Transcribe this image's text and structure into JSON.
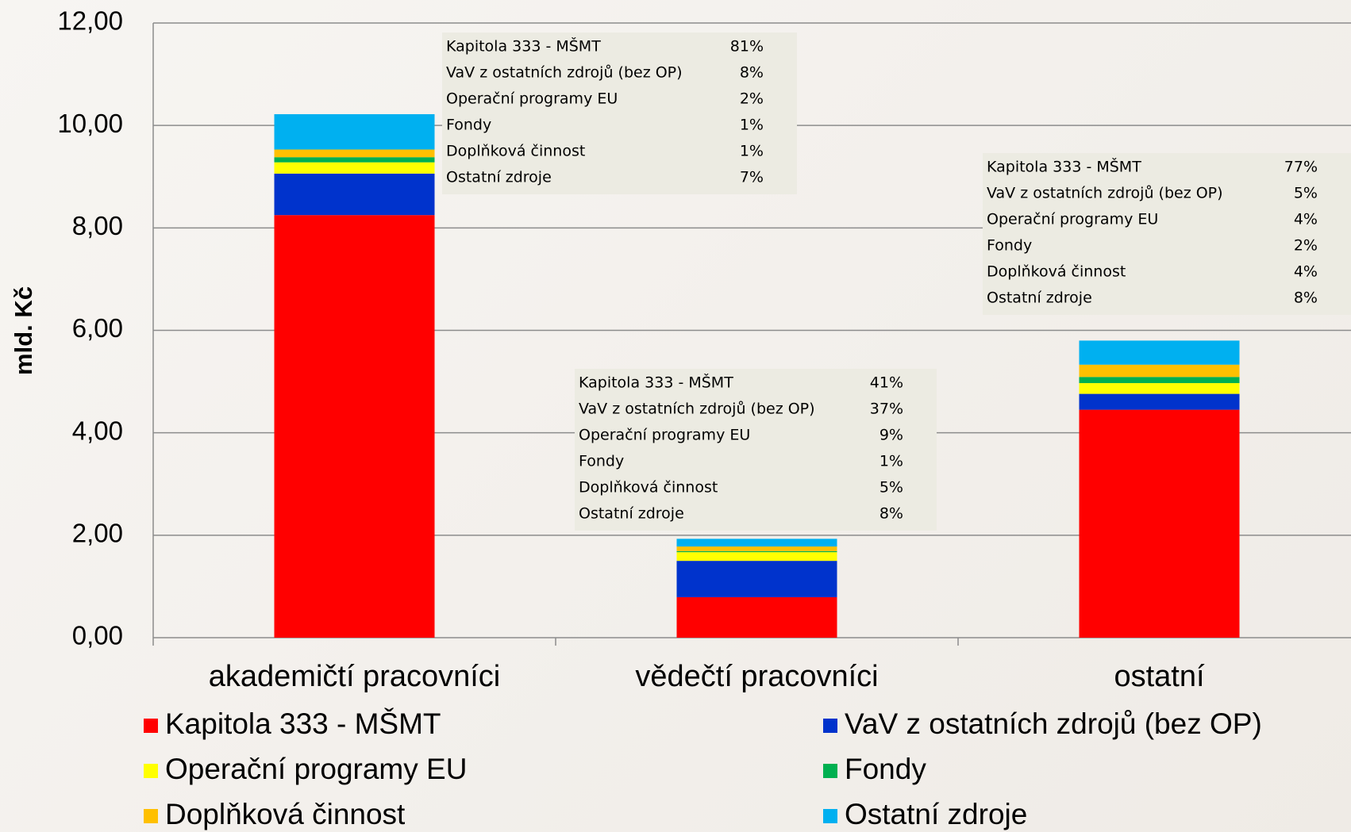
{
  "chart_data": {
    "type": "stacked_bar",
    "y_label": "mld. Kč",
    "categories": [
      "akademičtí pracovníci",
      "vědečtí pracovníci",
      "ostatní"
    ],
    "series": [
      {
        "name": "Kapitola 333 - MŠMT",
        "color": "#ff0000",
        "values": [
          8.25,
          0.79,
          4.45
        ]
      },
      {
        "name": "VaV z ostatních zdrojů (bez OP)",
        "color": "#0033cc",
        "values": [
          0.81,
          0.71,
          0.31
        ]
      },
      {
        "name": "Operační programy EU",
        "color": "#ffff00",
        "values": [
          0.22,
          0.17,
          0.21
        ]
      },
      {
        "name": "Fondy",
        "color": "#00b050",
        "values": [
          0.1,
          0.02,
          0.12
        ]
      },
      {
        "name": "Doplňková činnost",
        "color": "#ffc000",
        "values": [
          0.15,
          0.09,
          0.24
        ]
      },
      {
        "name": "Ostatní zdroje",
        "color": "#00b0f0",
        "values": [
          0.69,
          0.15,
          0.47
        ]
      }
    ],
    "ylim": [
      0,
      12
    ],
    "yticks": [
      {
        "value": 0,
        "label": "0,00"
      },
      {
        "value": 2,
        "label": "2,00"
      },
      {
        "value": 4,
        "label": "4,00"
      },
      {
        "value": 6,
        "label": "6,00"
      },
      {
        "value": 8,
        "label": "8,00"
      },
      {
        "value": 10,
        "label": "10,00"
      },
      {
        "value": 12,
        "label": "12,00"
      }
    ],
    "grid": true,
    "legend": "bottom",
    "annotations": [
      {
        "rows": [
          [
            "Kapitola 333 - MŠMT",
            "81%"
          ],
          [
            "VaV z ostatních zdrojů (bez OP)",
            "8%"
          ],
          [
            "Operační programy EU",
            "2%"
          ],
          [
            "Fondy",
            "1%"
          ],
          [
            "Doplňková činnost",
            "1%"
          ],
          [
            "Ostatní zdroje",
            "7%"
          ]
        ]
      },
      {
        "rows": [
          [
            "Kapitola 333 - MŠMT",
            "41%"
          ],
          [
            "VaV z ostatních zdrojů (bez OP)",
            "37%"
          ],
          [
            "Operační programy EU",
            "9%"
          ],
          [
            "Fondy",
            "1%"
          ],
          [
            "Doplňková činnost",
            "5%"
          ],
          [
            "Ostatní zdroje",
            "8%"
          ]
        ]
      },
      {
        "rows": [
          [
            "Kapitola 333 - MŠMT",
            "77%"
          ],
          [
            "VaV z ostatních zdrojů (bez OP)",
            "5%"
          ],
          [
            "Operační programy EU",
            "4%"
          ],
          [
            "Fondy",
            "2%"
          ],
          [
            "Doplňková činnost",
            "4%"
          ],
          [
            "Ostatní zdroje",
            "8%"
          ]
        ]
      }
    ]
  }
}
